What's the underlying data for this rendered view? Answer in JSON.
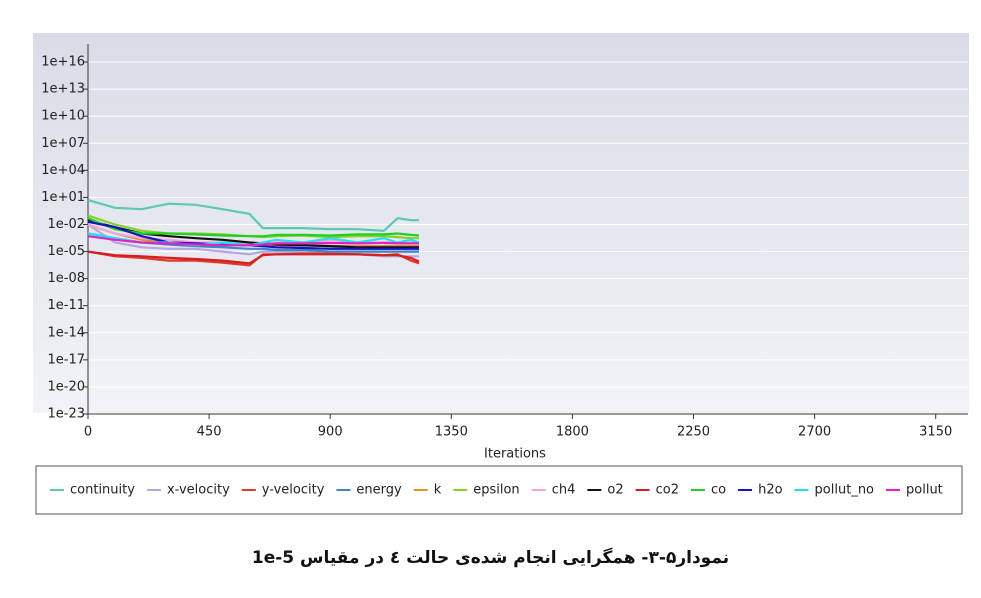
{
  "chart_data": {
    "type": "line",
    "x_label": "Iterations",
    "log_y": true,
    "grid": true,
    "legend": "bottom",
    "xlim": [
      0,
      3270
    ],
    "xticks": [
      0,
      450,
      900,
      1350,
      1800,
      2250,
      2700,
      3150
    ],
    "ylim": [
      1e-23,
      1e+18
    ],
    "yticks": [
      {
        "value": 1e+16,
        "label": "1e+16"
      },
      {
        "value": 10000000000000.0,
        "label": "1e+13"
      },
      {
        "value": 10000000000.0,
        "label": "1e+10"
      },
      {
        "value": 10000000.0,
        "label": "1e+07"
      },
      {
        "value": 10000.0,
        "label": "1e+04"
      },
      {
        "value": 10,
        "label": "1e+01"
      },
      {
        "value": 0.01,
        "label": "1e-02"
      },
      {
        "value": 1e-05,
        "label": "1e-05"
      },
      {
        "value": 1e-08,
        "label": "1e-08"
      },
      {
        "value": 1e-11,
        "label": "1e-11"
      },
      {
        "value": 1e-14,
        "label": "1e-14"
      },
      {
        "value": 1e-17,
        "label": "1e-17"
      },
      {
        "value": 1e-20,
        "label": "1e-20"
      },
      {
        "value": 1e-23,
        "label": "1e-23"
      }
    ],
    "x": [
      0,
      100,
      200,
      300,
      400,
      500,
      600,
      650,
      700,
      800,
      900,
      1000,
      1100,
      1150,
      1200,
      1230
    ],
    "series": [
      {
        "name": "continuity",
        "color": "#5cc8b0",
        "values": [
          5,
          0.7,
          0.5,
          2,
          1.5,
          0.5,
          0.15,
          0.004,
          0.004,
          0.004,
          0.003,
          0.003,
          0.002,
          0.05,
          0.03,
          0.03
        ]
      },
      {
        "name": "x-velocity",
        "color": "#b4a6e0",
        "values": [
          0.01,
          0.0001,
          3e-05,
          2e-05,
          2e-05,
          1e-05,
          5e-06,
          1e-05,
          1e-05,
          8e-06,
          6e-06,
          5e-06,
          3e-06,
          3e-06,
          3e-06,
          3e-06
        ]
      },
      {
        "name": "y-velocity",
        "color": "#e03a2a",
        "values": [
          1e-05,
          3e-06,
          2e-06,
          1e-06,
          1e-06,
          6e-07,
          3e-07,
          5e-06,
          5e-06,
          6e-06,
          6e-06,
          5e-06,
          4e-06,
          5e-06,
          1e-06,
          5e-07
        ]
      },
      {
        "name": "energy",
        "color": "#3a86c6",
        "values": [
          0.001,
          0.0003,
          0.0001,
          6e-05,
          4e-05,
          3e-05,
          2e-05,
          2e-05,
          1.5e-05,
          1.5e-05,
          1e-05,
          1e-05,
          1e-05,
          1e-05,
          1e-05,
          1e-05
        ]
      },
      {
        "name": "k",
        "color": "#f08a24",
        "values": [
          0.01,
          0.001,
          0.0002,
          0.0001,
          0.0001,
          8e-05,
          6e-05,
          5e-05,
          5e-05,
          5e-05,
          4e-05,
          4e-05,
          4e-05,
          4e-05,
          4e-05,
          4e-05
        ]
      },
      {
        "name": "epsilon",
        "color": "#86d02a",
        "values": [
          0.1,
          0.01,
          0.002,
          0.001,
          0.001,
          0.0008,
          0.0005,
          0.0004,
          0.0005,
          0.0006,
          0.0004,
          0.0005,
          0.0005,
          0.0004,
          0.0003,
          0.0003
        ]
      },
      {
        "name": "ch4",
        "color": "#f0a6d4",
        "values": [
          0.01,
          0.001,
          0.0003,
          0.0002,
          0.0001,
          0.0001,
          8e-05,
          6e-05,
          0.0001,
          0.0001,
          0.0002,
          0.0001,
          0.0001,
          0.0001,
          0.0001,
          0.0001
        ]
      },
      {
        "name": "o2",
        "color": "#111111",
        "values": [
          0.03,
          0.005,
          0.001,
          0.0005,
          0.0003,
          0.0002,
          0.0001,
          8e-05,
          6e-05,
          5e-05,
          4e-05,
          3e-05,
          3e-05,
          3e-05,
          3e-05,
          3e-05
        ]
      },
      {
        "name": "co2",
        "color": "#d42020",
        "values": [
          1e-05,
          4e-06,
          3e-06,
          2e-06,
          1.5e-06,
          1e-06,
          5e-07,
          4e-06,
          5e-06,
          5e-06,
          5e-06,
          5e-06,
          4e-06,
          4e-06,
          2e-06,
          8e-07
        ]
      },
      {
        "name": "co",
        "color": "#22d022",
        "values": [
          0.05,
          0.003,
          0.001,
          0.001,
          0.0008,
          0.0006,
          0.0005,
          0.0005,
          0.0007,
          0.0007,
          0.0006,
          0.0008,
          0.0008,
          0.001,
          0.0007,
          0.0006
        ]
      },
      {
        "name": "h2o",
        "color": "#1414c4",
        "values": [
          0.02,
          0.005,
          0.0005,
          0.0001,
          8e-05,
          6e-05,
          5e-05,
          4e-05,
          3e-05,
          2.5e-05,
          2e-05,
          2e-05,
          2e-05,
          2e-05,
          2e-05,
          2e-05
        ]
      },
      {
        "name": "pollut_no",
        "color": "#22e0f0",
        "values": [
          0.001,
          0.0003,
          0.0001,
          0.0001,
          5e-05,
          0.0001,
          5e-05,
          0.0001,
          0.0002,
          0.0001,
          0.0003,
          0.0001,
          0.0003,
          0.0001,
          0.0002,
          0.0001
        ]
      },
      {
        "name": "pollut",
        "color": "#e024c4",
        "values": [
          0.0005,
          0.0002,
          0.0001,
          8e-05,
          6e-05,
          5e-05,
          5e-05,
          6e-05,
          8e-05,
          8e-05,
          9e-05,
          8e-05,
          9e-05,
          8e-05,
          8e-05,
          8e-05
        ]
      }
    ]
  },
  "caption": "نمودار۵-۳- همگرایی انجام شده‌ی حالت ٤ در مقیاس 1e-5"
}
